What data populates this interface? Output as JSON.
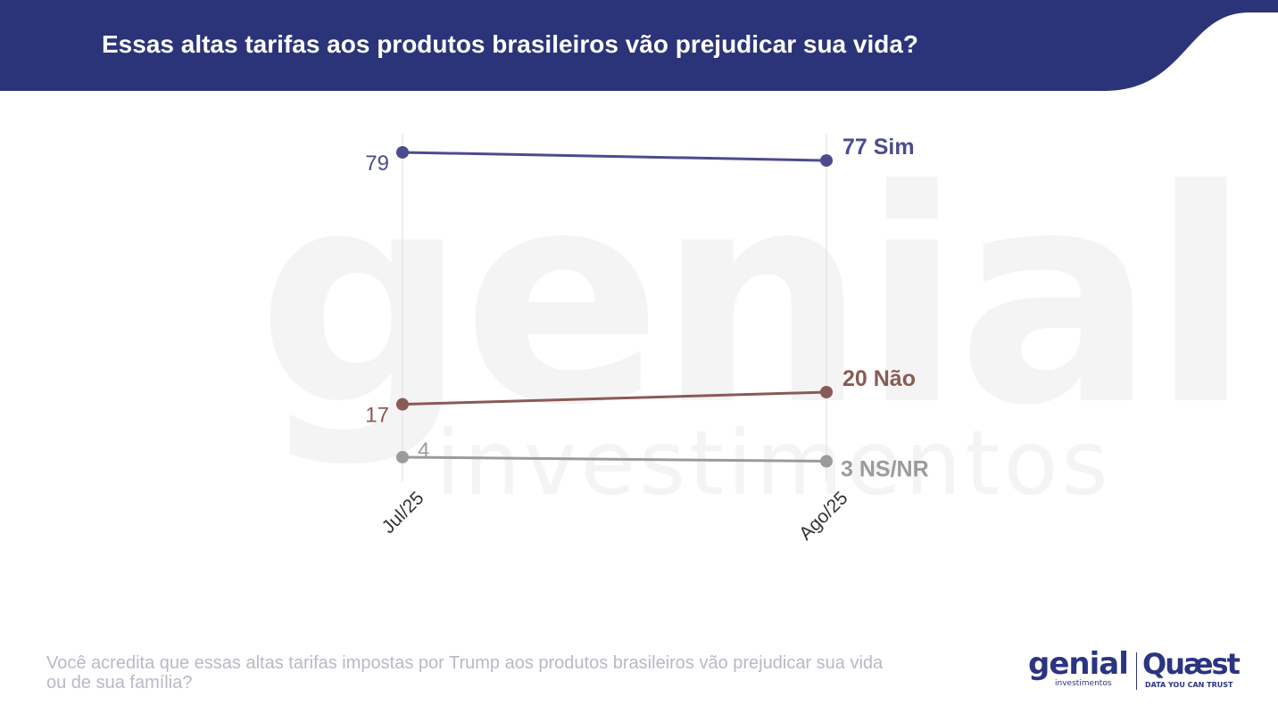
{
  "header": {
    "title": "Essas altas tarifas aos produtos brasileiros vão prejudicar sua vida?",
    "color": "#2b3479"
  },
  "watermark": {
    "word": "genial",
    "sub": "investimentos"
  },
  "chart_data": {
    "type": "line",
    "x": [
      "Jul/25",
      "Ago/25"
    ],
    "ylim": [
      0,
      100
    ],
    "grid": "vertical",
    "series": [
      {
        "name": "Sim",
        "values": [
          79,
          77
        ],
        "color": "#4b4c8c",
        "start_label": "79",
        "end_label": "77 Sim"
      },
      {
        "name": "Não",
        "values": [
          17,
          20
        ],
        "color": "#8a5a56",
        "start_label": "17",
        "end_label": "20 Não"
      },
      {
        "name": "NS/NR",
        "values": [
          4,
          3
        ],
        "color": "#9b9b9b",
        "start_label": "4",
        "end_label": "3 NS/NR"
      }
    ]
  },
  "footnote": "Você acredita que essas altas tarifas impostas por Trump aos produtos brasileiros vão prejudicar sua vida ou de sua família?",
  "logos": {
    "genial": "genial",
    "genial_sub": "investimentos",
    "quaest": "Quæst",
    "quaest_sub": "DATA YOU CAN TRUST"
  }
}
